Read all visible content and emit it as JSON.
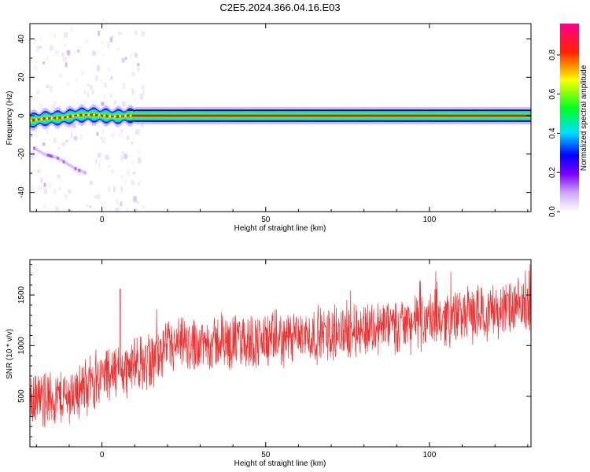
{
  "title": "C2E5.2024.366.04.16.E03",
  "colors": {
    "frame": "#000000",
    "snr_line": "#ee3333",
    "trace": "#e81414"
  },
  "chart_data": [
    {
      "type": "heatmap",
      "xlabel": "Height of straight line (km)",
      "ylabel": "Frequency (Hz)",
      "xlim": [
        -22,
        131
      ],
      "ylim": [
        -50,
        48
      ],
      "x_ticks": [
        0,
        50,
        100
      ],
      "x_tick_labels": [
        "0",
        "50",
        "100"
      ],
      "y_ticks": [
        -40,
        -20,
        0,
        20,
        40
      ],
      "y_tick_labels": [
        "-40",
        "-20",
        "0",
        "20",
        "40"
      ],
      "colorbar": {
        "label": "Normalized spectral amplitude",
        "range": [
          0,
          0.96
        ],
        "ticks": [
          0.0,
          0.2,
          0.4,
          0.6,
          0.8
        ],
        "tick_labels": [
          "0.0",
          "0.2",
          "0.4",
          "0.6",
          "0.8"
        ],
        "colormap": [
          "#ffffff",
          "#8a00ff",
          "#0000ff",
          "#00ffff",
          "#00ff00",
          "#ffff00",
          "#ff0000",
          "#ff00aa"
        ]
      },
      "main_trace": {
        "x": [
          -22,
          -18,
          -12,
          -8,
          -4,
          0,
          4,
          8,
          15,
          30,
          60,
          95,
          131
        ],
        "y": [
          -2.5,
          -1.5,
          -1.0,
          0.2,
          0.5,
          0.0,
          -0.5,
          0.0,
          0.0,
          0.0,
          0.0,
          0.0,
          0.0
        ],
        "intensity": 0.95
      },
      "secondary_trace": {
        "x": [
          -21,
          -18,
          -14,
          -11,
          -8,
          -5
        ],
        "y": [
          -17,
          -20,
          -22,
          -25,
          -28,
          -30
        ],
        "intensity": 0.2
      }
    },
    {
      "type": "line",
      "xlabel": "Height of straight line (km)",
      "ylabel": "SNR (10 * v/v)",
      "xlim": [
        -22,
        131
      ],
      "ylim": [
        0,
        1850
      ],
      "x_ticks": [
        0,
        50,
        100
      ],
      "x_tick_labels": [
        "0",
        "50",
        "100"
      ],
      "y_ticks": [
        500,
        1000,
        1500
      ],
      "y_tick_labels": [
        "500",
        "1000",
        "1500"
      ],
      "series": [
        {
          "trend_x": [
            -22,
            -15,
            -10,
            -5,
            0,
            5,
            10,
            15,
            20,
            25,
            30,
            40,
            50,
            60,
            70,
            80,
            90,
            100,
            110,
            120,
            131
          ],
          "trend_y": [
            450,
            480,
            500,
            600,
            700,
            750,
            800,
            850,
            950,
            1000,
            1020,
            1040,
            1050,
            1080,
            1120,
            1170,
            1200,
            1250,
            1300,
            1350,
            1380
          ],
          "noise_amplitude": 320,
          "spike": {
            "x": 5.5,
            "y": 1560
          }
        }
      ]
    }
  ]
}
